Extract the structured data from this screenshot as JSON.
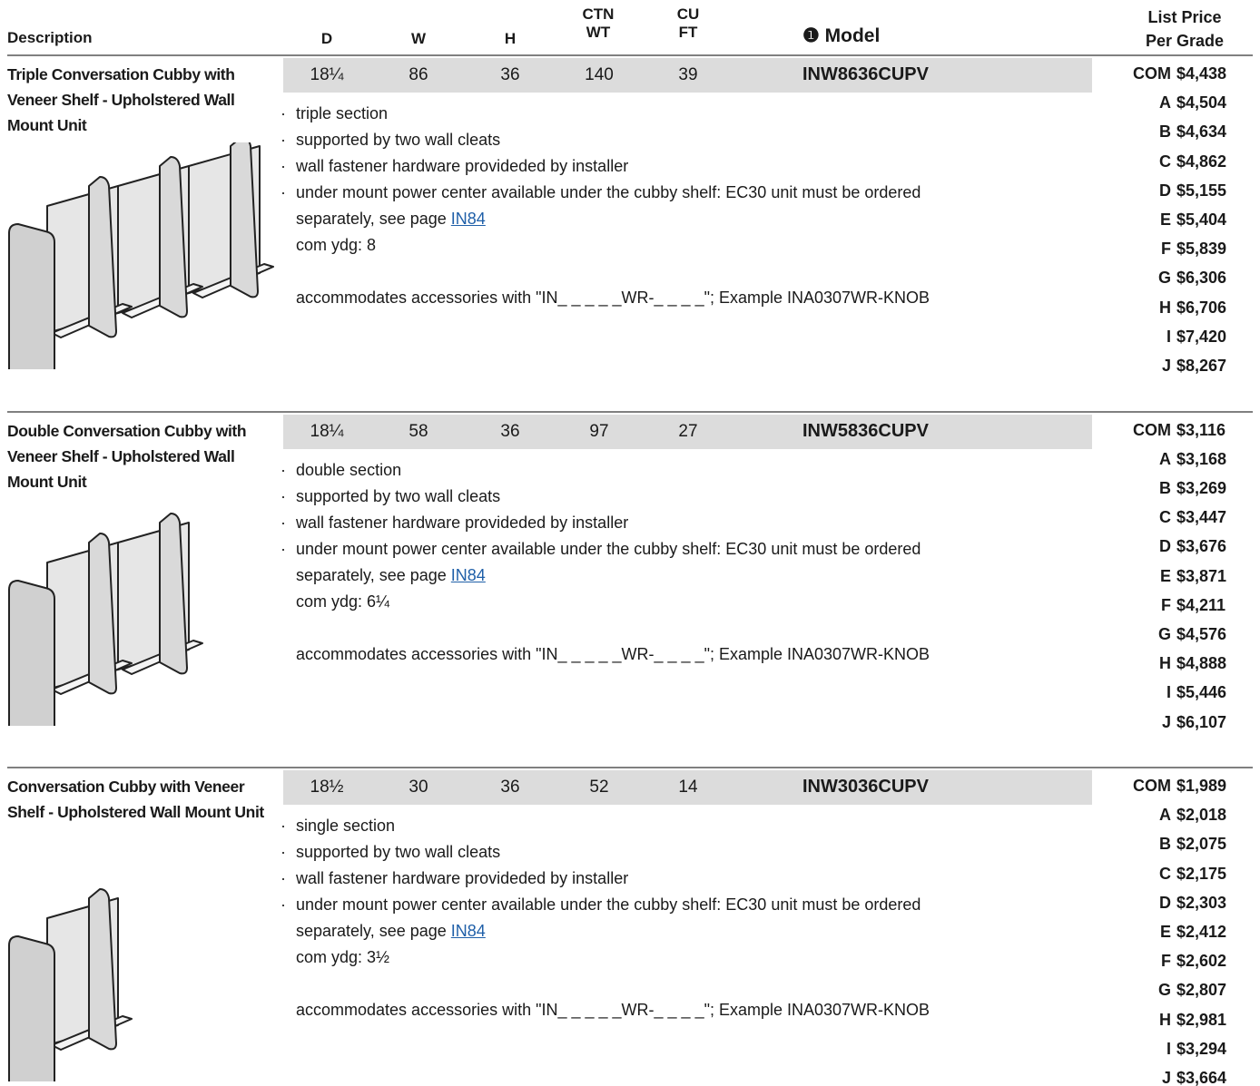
{
  "header": {
    "description": "Description",
    "d": "D",
    "w": "W",
    "h": "H",
    "ctn_wt": [
      "CTN",
      "WT"
    ],
    "cu_ft": [
      "CU",
      "FT"
    ],
    "model": "❶ Model",
    "list_price": [
      "List Price",
      "Per Grade"
    ]
  },
  "products": [
    {
      "description": "Triple Conversation Cubby with Veneer Shelf - Upholstered Wall Mount Unit",
      "d": "18¼",
      "w": 86,
      "h": 36,
      "ctn_wt": 140,
      "cu_ft": 39,
      "model": "INW8636CUPV",
      "bullets": [
        "triple section",
        "supported by two wall cleats",
        "wall fastener hardware provideded by installer",
        "under mount power center available under the cubby shelf: EC30 unit must be ordered"
      ],
      "see_page": "separately, see page",
      "link": "IN84",
      "com_ydg": "com ydg: 8",
      "accessories": "accommodates accessories with \"IN_ _ _ _ _WR-_ _ _ _\"; Example INA0307WR-KNOB",
      "prices": [
        [
          "COM",
          "$4,438"
        ],
        [
          "A",
          "$4,504"
        ],
        [
          "B",
          "$4,634"
        ],
        [
          "C",
          "$4,862"
        ],
        [
          "D",
          "$5,155"
        ],
        [
          "E",
          "$5,404"
        ],
        [
          "F",
          "$5,839"
        ],
        [
          "G",
          "$6,306"
        ],
        [
          "H",
          "$6,706"
        ],
        [
          "I",
          "$7,420"
        ],
        [
          "J",
          "$8,267"
        ]
      ]
    },
    {
      "description": "Double Conversation Cubby with Veneer Shelf - Upholstered Wall Mount Unit",
      "d": "18¼",
      "w": 58,
      "h": 36,
      "ctn_wt": 97,
      "cu_ft": 27,
      "model": "INW5836CUPV",
      "bullets": [
        "double section",
        "supported by two wall cleats",
        "wall fastener hardware provideded by installer",
        "under mount power center available under the cubby shelf: EC30 unit must be ordered"
      ],
      "see_page": "separately, see page",
      "link": "IN84",
      "com_ydg": "com ydg: 6¼",
      "accessories": "accommodates accessories with \"IN_ _ _ _ _WR-_ _ _ _\"; Example INA0307WR-KNOB",
      "prices": [
        [
          "COM",
          "$3,116"
        ],
        [
          "A",
          "$3,168"
        ],
        [
          "B",
          "$3,269"
        ],
        [
          "C",
          "$3,447"
        ],
        [
          "D",
          "$3,676"
        ],
        [
          "E",
          "$3,871"
        ],
        [
          "F",
          "$4,211"
        ],
        [
          "G",
          "$4,576"
        ],
        [
          "H",
          "$4,888"
        ],
        [
          "I",
          "$5,446"
        ],
        [
          "J",
          "$6,107"
        ]
      ]
    },
    {
      "description": "Conversation Cubby with Veneer Shelf - Upholstered Wall Mount Unit",
      "d": "18½",
      "w": 30,
      "h": 36,
      "ctn_wt": 52,
      "cu_ft": 14,
      "model": "INW3036CUPV",
      "bullets": [
        "single section",
        "supported by two wall cleats",
        "wall fastener hardware provideded by installer",
        "under mount power center available under the cubby shelf: EC30 unit must be ordered"
      ],
      "see_page": "separately, see page",
      "link": "IN84",
      "com_ydg": "com ydg: 3½",
      "accessories": "accommodates accessories with \"IN_ _ _ _ _WR-_ _ _ _\"; Example INA0307WR-KNOB",
      "prices": [
        [
          "COM",
          "$1,989"
        ],
        [
          "A",
          "$2,018"
        ],
        [
          "B",
          "$2,075"
        ],
        [
          "C",
          "$2,175"
        ],
        [
          "D",
          "$2,303"
        ],
        [
          "E",
          "$2,412"
        ],
        [
          "F",
          "$2,602"
        ],
        [
          "G",
          "$2,807"
        ],
        [
          "H",
          "$2,981"
        ],
        [
          "I",
          "$3,294"
        ],
        [
          "J",
          "$3,664"
        ]
      ]
    }
  ]
}
